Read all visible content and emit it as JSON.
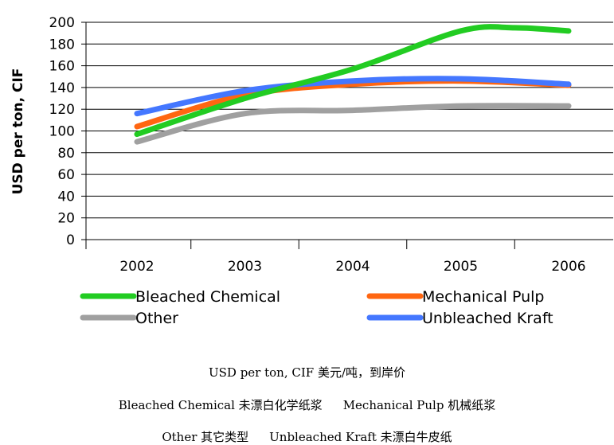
{
  "chart_data": {
    "type": "line",
    "ylabel": "USD per ton, CIF",
    "xlabel": "",
    "categories": [
      "2002",
      "2003",
      "2004",
      "2005",
      "2006"
    ],
    "ylim": [
      0,
      200
    ],
    "yticks": [
      0,
      20,
      40,
      60,
      80,
      100,
      120,
      140,
      160,
      180,
      200
    ],
    "grid": "horizontal",
    "legend_position": "bottom",
    "series": [
      {
        "name": "Bleached Chemical",
        "color": "#22cc22",
        "x": [
          2002,
          2003,
          2004,
          2005,
          2005.5,
          2006
        ],
        "values": [
          97,
          130,
          157,
          192,
          195,
          192
        ]
      },
      {
        "name": "Mechanical Pulp",
        "color": "#ff6611",
        "x": [
          2002,
          2003,
          2004,
          2005,
          2006
        ],
        "values": [
          104,
          133,
          143,
          146,
          142
        ]
      },
      {
        "name": "Other",
        "color": "#a0a0a0",
        "x": [
          2002,
          2003,
          2004,
          2005,
          2006
        ],
        "values": [
          90,
          116,
          119,
          123,
          123
        ]
      },
      {
        "name": "Unbleached Kraft",
        "color": "#4477ff",
        "x": [
          2002,
          2003,
          2004,
          2005,
          2006
        ],
        "values": [
          116,
          137,
          146,
          148,
          143
        ]
      }
    ]
  },
  "captions": {
    "line1": "USD per ton, CIF 美元/吨，到岸价",
    "line2a": "Bleached Chemical 未漂白化学纸浆",
    "line2b": "Mechanical Pulp 机械纸浆",
    "line3a": "Other 其它类型",
    "line3b": "Unbleached Kraft 未漂白牛皮纸"
  }
}
